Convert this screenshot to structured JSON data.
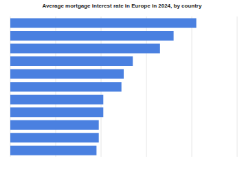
{
  "chart_data": {
    "type": "bar",
    "title": "Average mortgage interest rate in Europe in 2024, by country",
    "orientation": "horizontal",
    "categories": [
      null,
      null,
      null,
      null,
      null,
      null,
      null,
      null,
      null,
      null,
      null
    ],
    "values": [
      8.2,
      7.2,
      6.6,
      5.4,
      5.0,
      4.9,
      4.1,
      4.1,
      3.9,
      3.9,
      3.8
    ],
    "color": "#4a80e0",
    "xlim": [
      0,
      10
    ],
    "xticks": [
      0,
      2,
      4,
      6,
      8,
      10
    ],
    "grid": true,
    "tick_labels": false
  }
}
